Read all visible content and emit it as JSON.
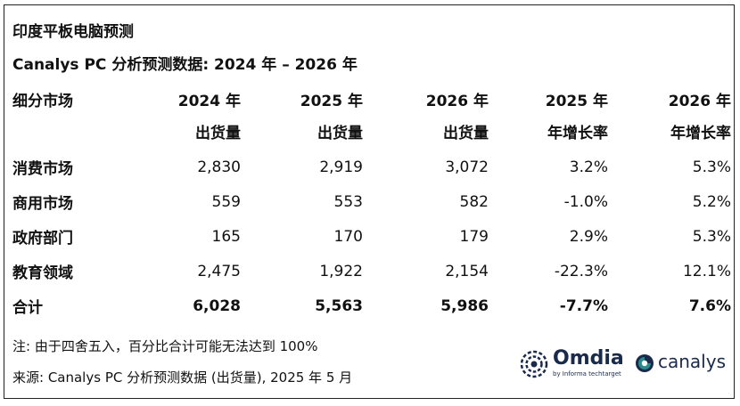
{
  "title": "印度平板电脑预测",
  "subtitle": "Canalys PC 分析预测数据: 2024 年 – 2026 年",
  "table": {
    "headers": [
      {
        "line1": "细分市场",
        "line2": ""
      },
      {
        "line1": "2024 年",
        "line2": "出货量"
      },
      {
        "line1": "2025 年",
        "line2": "出货量"
      },
      {
        "line1": "2026 年",
        "line2": "出货量"
      },
      {
        "line1": "2025 年",
        "line2": "年增长率"
      },
      {
        "line1": "2026 年",
        "line2": "年增长率"
      }
    ],
    "rows": [
      {
        "segment": "消费市场",
        "s2024": "2,830",
        "s2025": "2,919",
        "s2026": "3,072",
        "g2025": "3.2%",
        "g2026": "5.3%"
      },
      {
        "segment": "商用市场",
        "s2024": "559",
        "s2025": "553",
        "s2026": "582",
        "g2025": "-1.0%",
        "g2026": "5.2%"
      },
      {
        "segment": "政府部门",
        "s2024": "165",
        "s2025": "170",
        "s2026": "179",
        "g2025": "2.9%",
        "g2026": "5.3%"
      },
      {
        "segment": "教育领域",
        "s2024": "2,475",
        "s2025": "1,922",
        "s2026": "2,154",
        "g2025": "-22.3%",
        "g2026": "12.1%"
      }
    ],
    "total": {
      "segment": "合计",
      "s2024": "6,028",
      "s2025": "5,563",
      "s2026": "5,986",
      "g2025": "-7.7%",
      "g2026": "7.6%"
    }
  },
  "note": "注: 由于四舍五入，百分比合计可能无法达到 100%",
  "source": "来源: Canalys PC 分析预测数据 (出货量), 2025 年 5 月",
  "logos": {
    "omdia": {
      "name": "Omdia",
      "tagline": "by Informa techtarget",
      "icon": "omdia-swirl-icon"
    },
    "canalys": {
      "name": "canalys",
      "icon": "canalys-circle-icon"
    }
  },
  "colors": {
    "text": "#111111",
    "logo_dark": "#1a2a4a",
    "logo_teal": "#2a8c8c",
    "border": "#222222"
  },
  "chart_data": {
    "type": "table",
    "title": "印度平板电脑预测",
    "subtitle": "Canalys PC 分析预测数据: 2024 年 – 2026 年",
    "columns": [
      "细分市场",
      "2024 年 出货量",
      "2025 年 出货量",
      "2026 年 出货量",
      "2025 年 年增长率",
      "2026 年 年增长率"
    ],
    "rows": [
      [
        "消费市场",
        2830,
        2919,
        3072,
        3.2,
        5.3
      ],
      [
        "商用市场",
        559,
        553,
        582,
        -1.0,
        5.2
      ],
      [
        "政府部门",
        165,
        170,
        179,
        2.9,
        5.3
      ],
      [
        "教育领域",
        2475,
        1922,
        2154,
        -22.3,
        12.1
      ],
      [
        "合计",
        6028,
        5563,
        5986,
        -7.7,
        7.6
      ]
    ]
  }
}
